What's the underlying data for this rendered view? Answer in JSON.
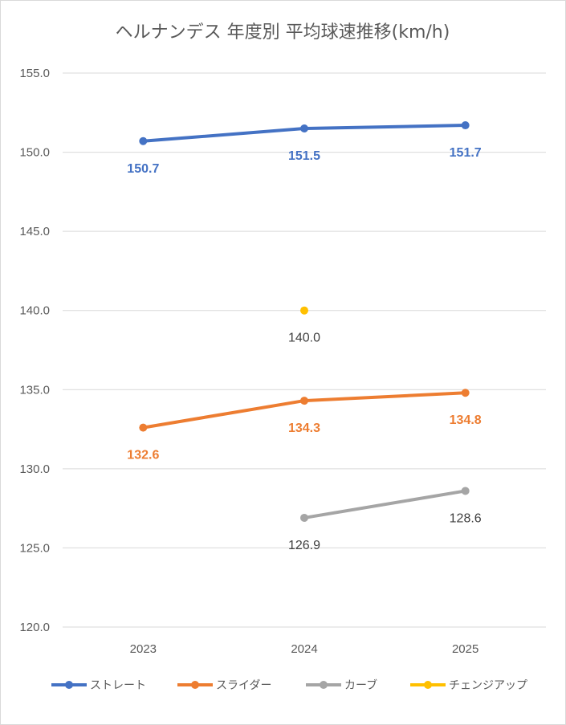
{
  "chart_data": {
    "type": "line",
    "title": "ヘルナンデス 年度別 平均球速推移(km/h)",
    "categories": [
      "2023",
      "2024",
      "2025"
    ],
    "y_ticks": [
      "155.0",
      "150.0",
      "145.0",
      "140.0",
      "135.0",
      "130.0",
      "125.0",
      "120.0"
    ],
    "ylim": [
      120,
      155
    ],
    "grid": true,
    "legend_position": "bottom",
    "series": [
      {
        "name": "ストレート",
        "color": "#4472c4",
        "values": [
          150.7,
          151.5,
          151.7
        ],
        "labels": [
          "150.7",
          "151.5",
          "151.7"
        ]
      },
      {
        "name": "スライダー",
        "color": "#ed7d31",
        "values": [
          132.6,
          134.3,
          134.8
        ],
        "labels": [
          "132.6",
          "134.3",
          "134.8"
        ]
      },
      {
        "name": "カーブ",
        "color": "#a5a5a5",
        "values": [
          null,
          126.9,
          128.6
        ],
        "labels": [
          "",
          "126.9",
          "128.6"
        ]
      },
      {
        "name": "チェンジアップ",
        "color": "#ffc000",
        "values": [
          null,
          140.0,
          null
        ],
        "labels": [
          "",
          "140.0",
          ""
        ]
      }
    ]
  }
}
